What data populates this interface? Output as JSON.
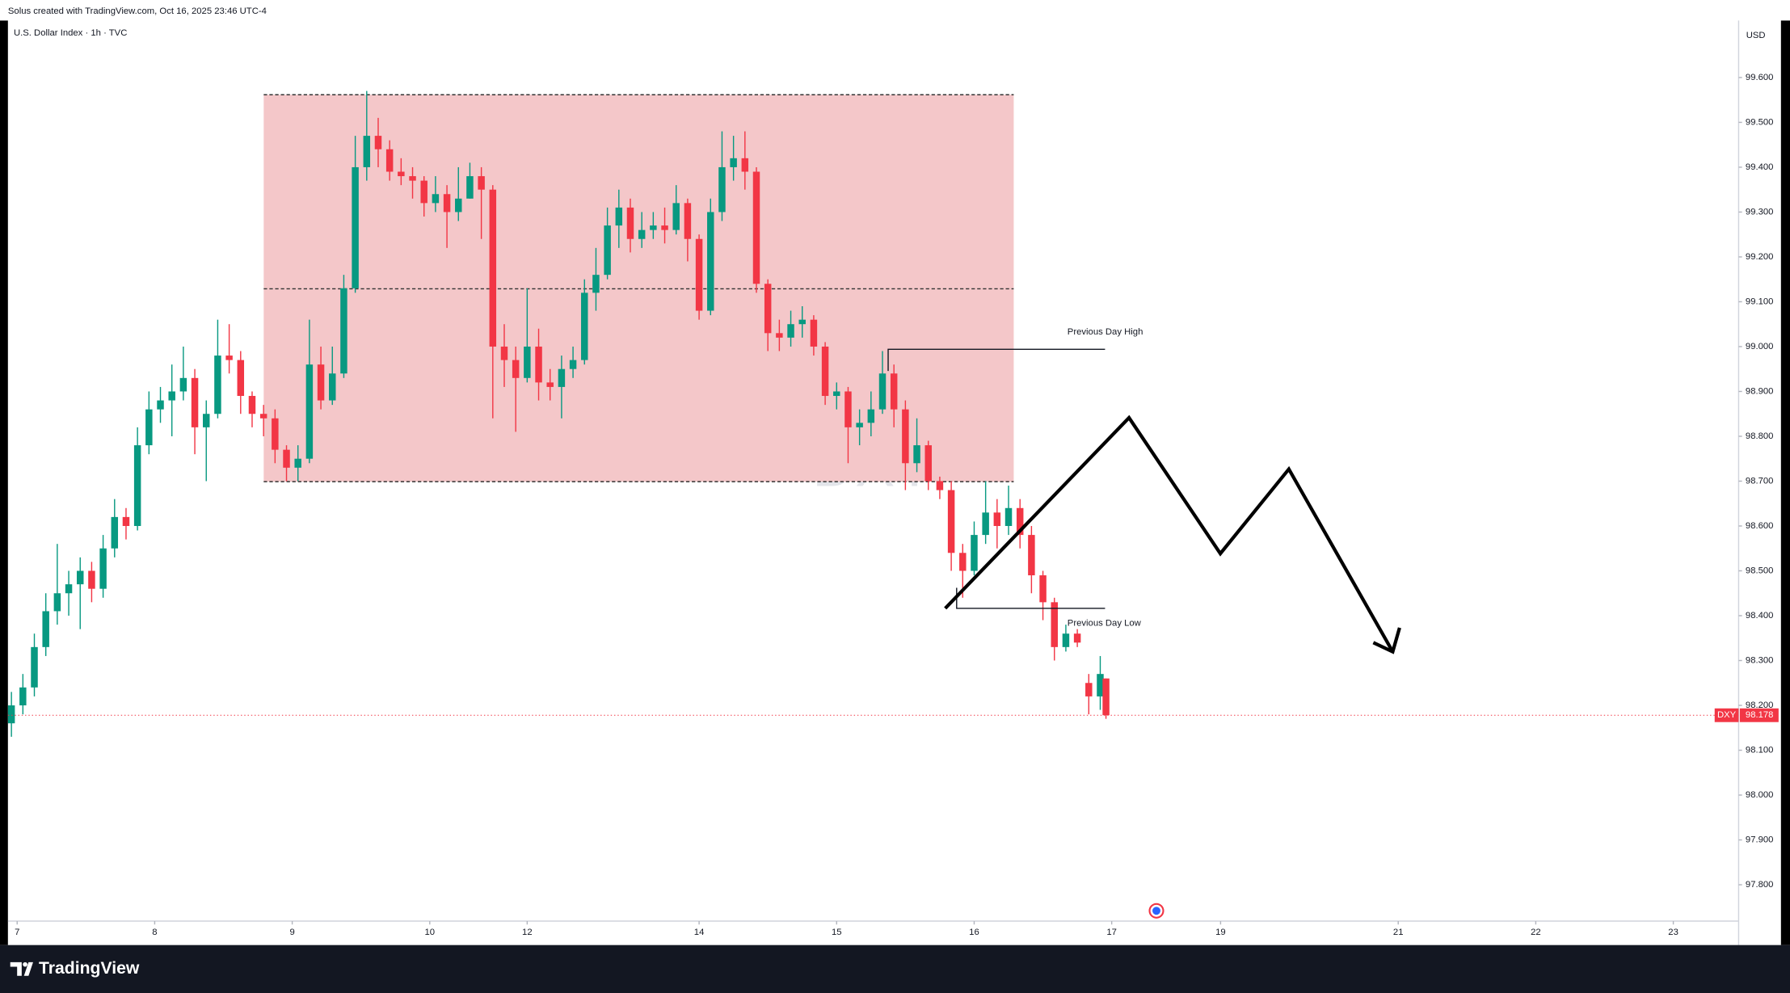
{
  "header": "Solus created with TradingView.com, Oct 16, 2025 23:46 UTC-4",
  "footer": {
    "brand": "TradingView"
  },
  "chart_data": {
    "type": "candlestick",
    "title": "U.S. Dollar Index · 1h · TVC",
    "currency": "USD",
    "watermark": "DXY",
    "symbol": "DXY",
    "annotations": [
      "Previous Day High",
      "Previous Day Low"
    ],
    "up_color": "#089981",
    "down_color": "#f23645",
    "grid": false,
    "xlim": [
      -0.6,
      301.4
    ],
    "ylim": [
      97.719,
      99.727
    ],
    "xticks": [
      {
        "value": 1,
        "label": "7"
      },
      {
        "value": 25,
        "label": "8"
      },
      {
        "value": 49,
        "label": "9"
      },
      {
        "value": 73,
        "label": "10"
      },
      {
        "value": 90,
        "label": "12"
      },
      {
        "value": 120,
        "label": "14"
      },
      {
        "value": 144,
        "label": "15"
      },
      {
        "value": 168,
        "label": "16"
      },
      {
        "value": 192,
        "label": "17"
      },
      {
        "value": 211,
        "label": "19"
      },
      {
        "value": 242,
        "label": "21"
      },
      {
        "value": 266,
        "label": "22"
      },
      {
        "value": 290,
        "label": "23"
      }
    ],
    "yticks": [
      {
        "value": 97.8,
        "label": "97.800"
      },
      {
        "value": 97.9,
        "label": "97.900"
      },
      {
        "value": 98.0,
        "label": "98.000"
      },
      {
        "value": 98.1,
        "label": "98.100"
      },
      {
        "value": 98.2,
        "label": "98.200"
      },
      {
        "value": 98.3,
        "label": "98.300"
      },
      {
        "value": 98.4,
        "label": "98.400"
      },
      {
        "value": 98.5,
        "label": "98.500"
      },
      {
        "value": 98.6,
        "label": "98.600"
      },
      {
        "value": 98.7,
        "label": "98.700"
      },
      {
        "value": 98.8,
        "label": "98.800"
      },
      {
        "value": 98.9,
        "label": "98.900"
      },
      {
        "value": 99.0,
        "label": "99.000"
      },
      {
        "value": 99.1,
        "label": "99.100"
      },
      {
        "value": 99.2,
        "label": "99.200"
      },
      {
        "value": 99.3,
        "label": "99.300"
      },
      {
        "value": 99.4,
        "label": "99.400"
      },
      {
        "value": 99.5,
        "label": "99.500"
      },
      {
        "value": 99.6,
        "label": "99.600"
      }
    ],
    "x": [
      0,
      2,
      4,
      6,
      8,
      10,
      12,
      14,
      16,
      18,
      20,
      22,
      24,
      26,
      28,
      30,
      32,
      34,
      36,
      38,
      40,
      42,
      44,
      46,
      48,
      50,
      52,
      54,
      56,
      58,
      60,
      62,
      64,
      66,
      68,
      70,
      72,
      74,
      76,
      78,
      80,
      82,
      84,
      86,
      88,
      90,
      92,
      94,
      96,
      98,
      100,
      102,
      104,
      106,
      108,
      110,
      112,
      114,
      116,
      118,
      120,
      122,
      124,
      126,
      128,
      130,
      132,
      134,
      136,
      138,
      140,
      142,
      144,
      146,
      148,
      150,
      152,
      154,
      156,
      158,
      160,
      162,
      164,
      166,
      168,
      170,
      172,
      174,
      176,
      178,
      180,
      182,
      184,
      186,
      188,
      190,
      191
    ],
    "candles": [
      [
        98.16,
        98.23,
        98.13,
        98.2
      ],
      [
        98.2,
        98.27,
        98.18,
        98.24
      ],
      [
        98.24,
        98.36,
        98.22,
        98.33
      ],
      [
        98.33,
        98.45,
        98.31,
        98.41
      ],
      [
        98.41,
        98.56,
        98.38,
        98.45
      ],
      [
        98.45,
        98.5,
        98.4,
        98.47
      ],
      [
        98.47,
        98.53,
        98.37,
        98.5
      ],
      [
        98.5,
        98.52,
        98.43,
        98.46
      ],
      [
        98.46,
        98.58,
        98.44,
        98.55
      ],
      [
        98.55,
        98.66,
        98.53,
        98.62
      ],
      [
        98.62,
        98.64,
        98.57,
        98.6
      ],
      [
        98.6,
        98.82,
        98.59,
        98.78
      ],
      [
        98.78,
        98.9,
        98.76,
        98.86
      ],
      [
        98.86,
        98.91,
        98.83,
        98.88
      ],
      [
        98.88,
        98.96,
        98.8,
        98.9
      ],
      [
        98.9,
        99.0,
        98.88,
        98.93
      ],
      [
        98.93,
        98.95,
        98.76,
        98.82
      ],
      [
        98.82,
        98.88,
        98.7,
        98.85
      ],
      [
        98.85,
        99.06,
        98.84,
        98.98
      ],
      [
        98.98,
        99.05,
        98.94,
        98.97
      ],
      [
        98.97,
        98.99,
        98.85,
        98.89
      ],
      [
        98.89,
        98.9,
        98.82,
        98.85
      ],
      [
        98.85,
        98.87,
        98.8,
        98.84
      ],
      [
        98.84,
        98.86,
        98.74,
        98.77
      ],
      [
        98.77,
        98.78,
        98.7,
        98.73
      ],
      [
        98.73,
        98.78,
        98.7,
        98.75
      ],
      [
        98.75,
        99.06,
        98.74,
        98.96
      ],
      [
        98.96,
        99.0,
        98.86,
        98.88
      ],
      [
        98.88,
        99.0,
        98.87,
        98.94
      ],
      [
        98.94,
        99.16,
        98.93,
        99.13
      ],
      [
        99.13,
        99.47,
        99.12,
        99.4
      ],
      [
        99.4,
        99.57,
        99.37,
        99.47
      ],
      [
        99.47,
        99.51,
        99.4,
        99.44
      ],
      [
        99.44,
        99.46,
        99.37,
        99.39
      ],
      [
        99.39,
        99.42,
        99.36,
        99.38
      ],
      [
        99.38,
        99.4,
        99.33,
        99.37
      ],
      [
        99.37,
        99.38,
        99.29,
        99.32
      ],
      [
        99.32,
        99.38,
        99.3,
        99.34
      ],
      [
        99.34,
        99.36,
        99.22,
        99.3
      ],
      [
        99.3,
        99.4,
        99.28,
        99.33
      ],
      [
        99.33,
        99.41,
        99.33,
        99.38
      ],
      [
        99.38,
        99.4,
        99.24,
        99.35
      ],
      [
        99.35,
        99.36,
        98.84,
        99.0
      ],
      [
        99.0,
        99.05,
        98.91,
        98.97
      ],
      [
        98.97,
        99.0,
        98.81,
        98.93
      ],
      [
        98.93,
        99.13,
        98.92,
        99.0
      ],
      [
        99.0,
        99.04,
        98.88,
        98.92
      ],
      [
        98.92,
        98.95,
        98.88,
        98.91
      ],
      [
        98.91,
        98.98,
        98.84,
        98.95
      ],
      [
        98.95,
        99.0,
        98.93,
        98.97
      ],
      [
        98.97,
        99.15,
        98.96,
        99.12
      ],
      [
        99.12,
        99.22,
        99.08,
        99.16
      ],
      [
        99.16,
        99.31,
        99.15,
        99.27
      ],
      [
        99.27,
        99.35,
        99.22,
        99.31
      ],
      [
        99.31,
        99.33,
        99.21,
        99.24
      ],
      [
        99.24,
        99.3,
        99.22,
        99.26
      ],
      [
        99.26,
        99.3,
        99.24,
        99.27
      ],
      [
        99.27,
        99.31,
        99.23,
        99.26
      ],
      [
        99.26,
        99.36,
        99.25,
        99.32
      ],
      [
        99.32,
        99.33,
        99.19,
        99.24
      ],
      [
        99.24,
        99.25,
        99.06,
        99.08
      ],
      [
        99.08,
        99.33,
        99.07,
        99.3
      ],
      [
        99.3,
        99.48,
        99.28,
        99.4
      ],
      [
        99.4,
        99.47,
        99.37,
        99.42
      ],
      [
        99.42,
        99.48,
        99.35,
        99.39
      ],
      [
        99.39,
        99.4,
        99.12,
        99.14
      ],
      [
        99.14,
        99.15,
        98.99,
        99.03
      ],
      [
        99.03,
        99.06,
        98.99,
        99.02
      ],
      [
        99.02,
        99.08,
        99.0,
        99.05
      ],
      [
        99.05,
        99.09,
        99.02,
        99.06
      ],
      [
        99.06,
        99.07,
        98.98,
        99.0
      ],
      [
        99.0,
        99.01,
        98.87,
        98.89
      ],
      [
        98.89,
        98.92,
        98.86,
        98.9
      ],
      [
        98.9,
        98.91,
        98.74,
        98.82
      ],
      [
        98.82,
        98.86,
        98.78,
        98.83
      ],
      [
        98.83,
        98.9,
        98.8,
        98.86
      ],
      [
        98.86,
        98.99,
        98.85,
        98.94
      ],
      [
        98.94,
        98.96,
        98.82,
        98.86
      ],
      [
        98.86,
        98.88,
        98.68,
        98.74
      ],
      [
        98.74,
        98.84,
        98.72,
        98.78
      ],
      [
        98.78,
        98.79,
        98.68,
        98.7
      ],
      [
        98.7,
        98.71,
        98.66,
        98.68
      ],
      [
        98.68,
        98.7,
        98.5,
        98.54
      ],
      [
        98.54,
        98.56,
        98.44,
        98.5
      ],
      [
        98.5,
        98.61,
        98.49,
        98.58
      ],
      [
        98.58,
        98.7,
        98.56,
        98.63
      ],
      [
        98.63,
        98.66,
        98.55,
        98.6
      ],
      [
        98.6,
        98.69,
        98.58,
        98.64
      ],
      [
        98.64,
        98.66,
        98.55,
        98.58
      ],
      [
        98.58,
        98.6,
        98.45,
        98.49
      ],
      [
        98.49,
        98.5,
        98.39,
        98.43
      ],
      [
        98.43,
        98.44,
        98.3,
        98.33
      ],
      [
        98.33,
        98.38,
        98.32,
        98.36
      ],
      [
        98.36,
        98.37,
        98.33,
        98.34
      ],
      [
        98.25,
        98.27,
        98.18,
        98.22
      ],
      [
        98.22,
        98.31,
        98.19,
        98.27
      ],
      [
        98.26,
        98.26,
        98.17,
        98.178
      ]
    ]
  }
}
